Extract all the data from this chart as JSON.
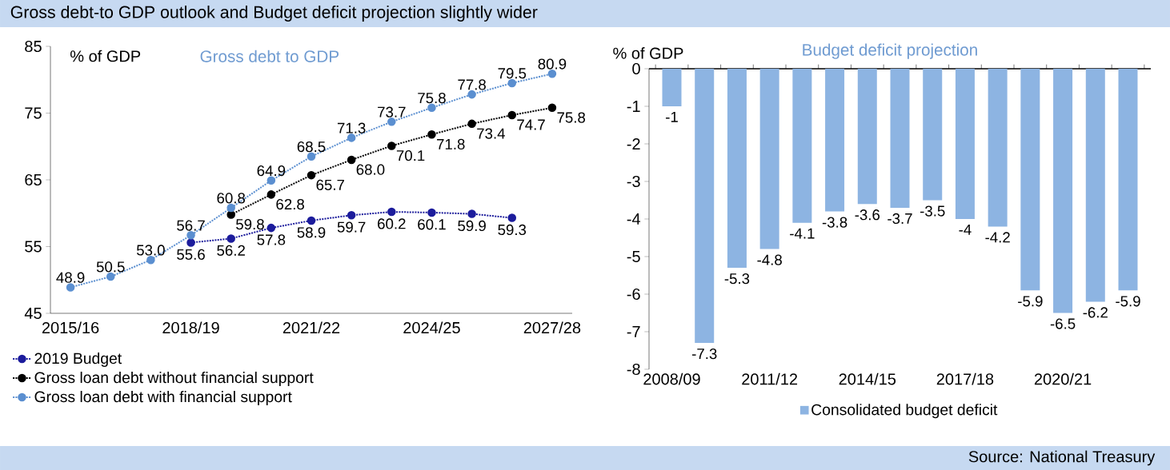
{
  "chart_data": [
    {
      "type": "line",
      "title": "Gross debt-to GDP outlook and Budget deficit projection slightly wider",
      "subtitle": "Gross debt to GDP",
      "ylabel": "% of GDP",
      "categories": [
        "2015/16",
        null,
        null,
        "2018/19",
        null,
        null,
        "2021/22",
        null,
        null,
        "2024/25",
        null,
        null,
        "2027/28"
      ],
      "ylim": [
        45,
        85
      ],
      "yticks": [
        45,
        55,
        65,
        75,
        85
      ],
      "legend": "bottom",
      "marker": "circle",
      "line_style": "dotted",
      "series": [
        {
          "name": "2019 Budget",
          "color": "#1c1c9c",
          "values": [
            null,
            null,
            null,
            55.6,
            56.2,
            57.8,
            58.9,
            59.7,
            60.2,
            60.1,
            59.9,
            59.3,
            null
          ],
          "value_labels": [
            null,
            null,
            null,
            "55.6",
            "56.2",
            "57.8",
            "58.9",
            "59.7",
            "60.2",
            "60.1",
            "59.9",
            "59.3",
            null
          ]
        },
        {
          "name": "Gross loan debt without financial support",
          "color": "#000000",
          "values": [
            null,
            null,
            null,
            null,
            59.8,
            62.8,
            65.7,
            68.0,
            70.1,
            71.8,
            73.4,
            74.7,
            75.8
          ],
          "value_labels": [
            null,
            null,
            null,
            null,
            "59.8",
            "62.8",
            "65.7",
            "68.0",
            "70.1",
            "71.8",
            "73.4",
            "74.7",
            "75.8"
          ]
        },
        {
          "name": "Gross loan debt with financial support",
          "color": "#5b8fd0",
          "values": [
            48.9,
            50.5,
            53.0,
            56.7,
            60.8,
            64.9,
            68.5,
            71.3,
            73.7,
            75.8,
            77.8,
            79.5,
            80.9
          ],
          "value_labels": [
            "48.9",
            "50.5",
            "53.0",
            "56.7",
            "60.8",
            "64.9",
            "68.5",
            "71.3",
            "73.7",
            "75.8",
            "77.8",
            "79.5",
            "80.9"
          ]
        }
      ]
    },
    {
      "type": "bar",
      "title": "Budget deficit projection",
      "ylabel": "% of GDP",
      "categories": [
        "2008/09",
        null,
        null,
        "2011/12",
        null,
        null,
        "2014/15",
        null,
        null,
        "2017/18",
        null,
        null,
        "2020/21",
        null,
        null
      ],
      "ylim": [
        -8,
        0
      ],
      "yticks": [
        -8,
        -7,
        -6,
        -5,
        -4,
        -3,
        -2,
        -1,
        0
      ],
      "legend": "bottom",
      "data_labels": true,
      "series": [
        {
          "name": "Consolidated budget deficit",
          "color": "#8db4e2",
          "values": [
            -1,
            -7.3,
            -5.3,
            -4.8,
            -4.1,
            -3.8,
            -3.6,
            -3.7,
            -3.5,
            -4,
            -4.2,
            -5.9,
            -6.5,
            -6.2,
            -5.9
          ]
        }
      ],
      "annotations": [
        "Source: National Treasury"
      ]
    }
  ]
}
